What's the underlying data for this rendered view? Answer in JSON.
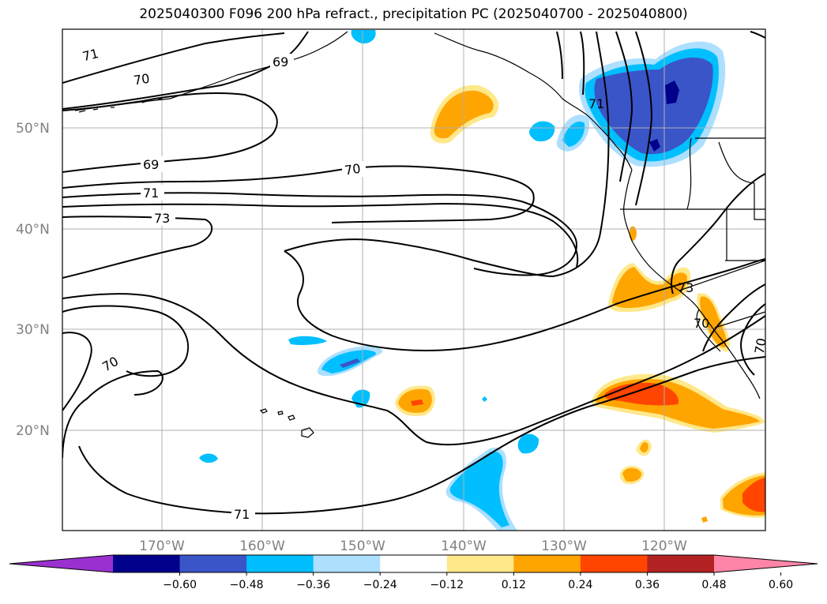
{
  "title": "2025040300 F096 200 hPa refract., precipitation PC (2025040700 - 2025040800)",
  "lat_labels": [
    "50°N",
    "40°N",
    "30°N",
    "20°N"
  ],
  "lon_labels": [
    "170°W",
    "160°W",
    "150°W",
    "140°W",
    "130°W",
    "120°W"
  ],
  "contour_labels": [
    "71",
    "70",
    "69",
    "69",
    "70",
    "71",
    "73",
    "70",
    "71",
    "73",
    "70",
    "71",
    "70"
  ],
  "colorbar": {
    "ticks": [
      "−0.60",
      "−0.48",
      "−0.36",
      "−0.24",
      "−0.12",
      "0.12",
      "0.24",
      "0.36",
      "0.48",
      "0.60"
    ],
    "colors": [
      "#9b30d0",
      "#00008b",
      "#3a55c8",
      "#00bfff",
      "#addfff",
      "#ffffff",
      "#ffe88a",
      "#ffa500",
      "#ff4500",
      "#b22222",
      "#ff85a8"
    ]
  },
  "map_colors": {
    "dark_blue": "#00008b",
    "royal_blue": "#3a55c8",
    "sky_blue": "#00bfff",
    "light_blue": "#addfff",
    "yellow": "#ffe88a",
    "orange": "#ffa500",
    "red_orange": "#ff4500"
  }
}
